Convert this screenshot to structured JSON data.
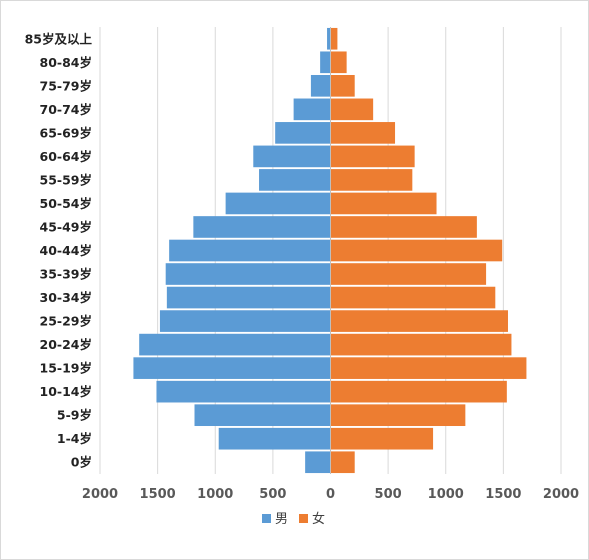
{
  "chart_data": {
    "type": "bar",
    "orientation": "horizontal-pyramid",
    "categories": [
      "0岁",
      "1-4岁",
      "5-9岁",
      "10-14岁",
      "15-19岁",
      "20-24岁",
      "25-29岁",
      "30-34岁",
      "35-39岁",
      "40-44岁",
      "45-49岁",
      "50-54岁",
      "55-59岁",
      "60-64岁",
      "65-69岁",
      "70-74岁",
      "75-79岁",
      "80-84岁",
      "85岁及以上"
    ],
    "series": [
      {
        "name": "男",
        "color": "#5b9bd5",
        "direction": "left",
        "values": [
          220,
          970,
          1180,
          1510,
          1710,
          1660,
          1480,
          1420,
          1430,
          1400,
          1190,
          910,
          620,
          670,
          480,
          320,
          170,
          90,
          30
        ]
      },
      {
        "name": "女",
        "color": "#ed7d31",
        "direction": "right",
        "values": [
          210,
          890,
          1170,
          1530,
          1700,
          1570,
          1540,
          1430,
          1350,
          1490,
          1270,
          920,
          710,
          730,
          560,
          370,
          210,
          140,
          60
        ]
      }
    ],
    "xlim": [
      -2000,
      2000
    ],
    "xticks": [
      -2000,
      -1500,
      -1000,
      -500,
      0,
      500,
      1000,
      1500,
      2000
    ],
    "xtick_labels": [
      "2000",
      "1500",
      "1000",
      "500",
      "0",
      "500",
      "1000",
      "1500",
      "2000"
    ],
    "grid": "vertical",
    "legend": "bottom",
    "title": "",
    "xlabel": "",
    "ylabel": ""
  }
}
